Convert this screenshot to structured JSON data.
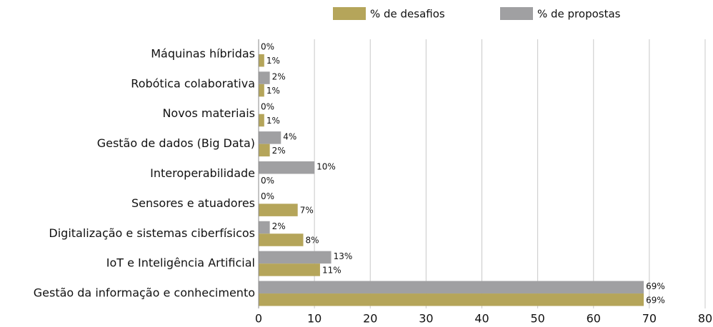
{
  "chart_data": {
    "type": "hbar",
    "categories": [
      "Máquinas híbridas",
      "Robótica colaborativa",
      "Novos materiais",
      "Gestão de dados (Big Data)",
      "Interoperabilidade",
      "Sensores e atuadores",
      "Digitalização e sistemas ciberfísicos",
      "IoT e Inteligência Artificial",
      "Gestão da informação e conhecimento"
    ],
    "series": [
      {
        "name": "% de desafios",
        "color": "#b5a55a",
        "values": [
          1,
          1,
          1,
          2,
          0,
          7,
          8,
          11,
          69
        ],
        "value_labels": [
          "1%",
          "1%",
          "1%",
          "2%",
          "0%",
          "7%",
          "8%",
          "11%",
          "69%"
        ]
      },
      {
        "name": "% de propostas",
        "color": "#a0a0a2",
        "values": [
          0,
          2,
          0,
          4,
          10,
          0,
          2,
          13,
          69
        ],
        "value_labels": [
          "0%",
          "2%",
          "0%",
          "4%",
          "10%",
          "0%",
          "2%",
          "13%",
          "69%"
        ]
      }
    ],
    "xlim": [
      0,
      80
    ],
    "xticks": [
      0,
      10,
      20,
      30,
      40,
      50,
      60,
      70,
      80
    ],
    "grid": true,
    "legend": "top"
  }
}
